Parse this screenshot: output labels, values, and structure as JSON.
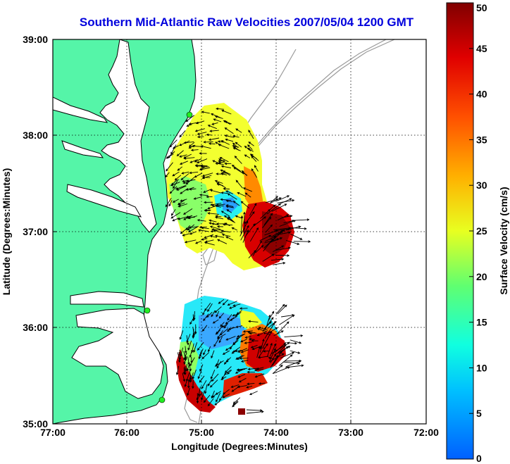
{
  "title": "Southern Mid-Atlantic Raw Velocities 2007/05/04 1200 GMT",
  "map": {
    "x_label": "Longitude (Degrees:Minutes)",
    "y_label": "Latitude (Degrees:Minutes)",
    "x_range_deg_w": [
      77,
      72
    ],
    "y_range_deg_n": [
      35,
      39
    ],
    "x_ticks": [
      "77:00",
      "76:00",
      "75:00",
      "74:00",
      "73:00",
      "72:00"
    ],
    "y_ticks": [
      "39:00",
      "38:00",
      "37:00",
      "36:00",
      "35:00"
    ],
    "gridlines": "dotted",
    "land_color": "#55f5a8",
    "coast_color": "#000000",
    "bathymetry_color": "#9a9a9a",
    "radar_sites": [
      {
        "lon_w": 75.15,
        "lat": 38.28
      },
      {
        "lon_w": 75.68,
        "lat": 36.18
      },
      {
        "lon_w": 75.52,
        "lat": 35.32
      }
    ]
  },
  "colorbar": {
    "label": "Surface Velocity (cm/s)",
    "min": 0,
    "max": 50,
    "ticks": [
      "0",
      "5",
      "10",
      "15",
      "20",
      "25",
      "30",
      "35",
      "40",
      "45",
      "50"
    ],
    "colormap": "jet"
  }
}
